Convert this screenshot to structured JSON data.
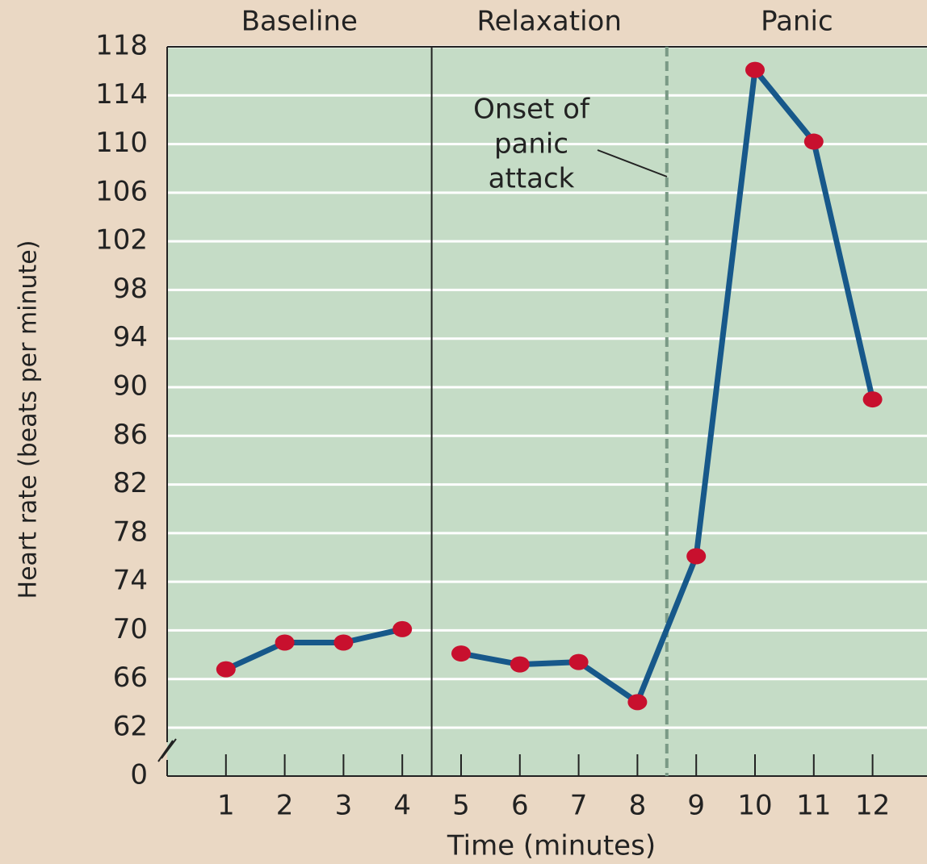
{
  "chart_data": {
    "type": "line",
    "xlabel": "Time (minutes)",
    "ylabel": "Heart rate (beats per minute)",
    "xlim": [
      0,
      13
    ],
    "xticks": [
      1,
      2,
      3,
      4,
      5,
      6,
      7,
      8,
      9,
      10,
      11,
      12
    ],
    "ylim": [
      0,
      118
    ],
    "yticks": [
      0,
      62,
      66,
      70,
      74,
      78,
      82,
      86,
      90,
      94,
      98,
      102,
      106,
      110,
      114,
      118
    ],
    "axis_break": true,
    "grid": true,
    "marker_color": "#c8102e",
    "series": [
      {
        "color": "#17588a",
        "x": [
          1,
          2,
          3,
          4
        ],
        "values": [
          66.8,
          69,
          69,
          70.1
        ]
      },
      {
        "color": "#17588a",
        "x": [
          5,
          6,
          7,
          8,
          9,
          10,
          11,
          12
        ],
        "values": [
          68.1,
          67.2,
          67.4,
          64.1,
          76.1,
          116.1,
          110.2,
          89
        ]
      }
    ],
    "phases": [
      "Baseline",
      "Relaxation",
      "Panic"
    ],
    "dividers": [
      {
        "x": 4.5,
        "style": "solid"
      },
      {
        "x": 8.5,
        "style": "dashed"
      }
    ],
    "annotation": [
      "Onset of",
      "panic",
      "attack"
    ]
  }
}
